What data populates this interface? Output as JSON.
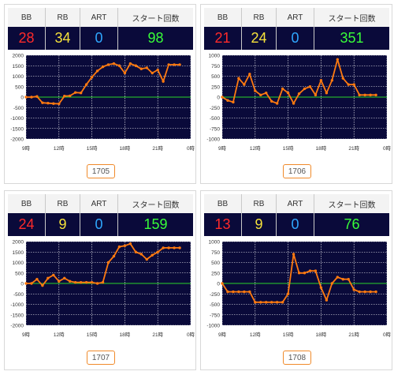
{
  "colors": {
    "bb": "#ff2a2a",
    "rb": "#f6e23a",
    "art": "#2fa7ff",
    "start": "#38ff38",
    "plot_bg": "#0a0a3a",
    "line": "#ff7a10",
    "zero_line": "#2bd42b",
    "grid": "#ffffff",
    "button_border": "#f08a2a"
  },
  "headers": [
    "BB",
    "RB",
    "ART",
    "スタート回数"
  ],
  "machines": [
    {
      "id": "1705",
      "stats": {
        "bb": "28",
        "rb": "34",
        "art": "0",
        "start": "98"
      },
      "chart_data": {
        "type": "line",
        "x_ticks": [
          "9時",
          "12時",
          "15時",
          "18時",
          "21時",
          "0時"
        ],
        "y_ticks": [
          "2000",
          "1500",
          "1000",
          "500",
          "0",
          "-500",
          "-1000",
          "-1500",
          "-2000"
        ],
        "ylim": [
          -2000,
          2000
        ],
        "xlim": [
          9,
          24
        ],
        "x": [
          9.0,
          9.5,
          10.0,
          10.5,
          11.0,
          11.5,
          12.0,
          12.5,
          13.0,
          13.5,
          14.0,
          14.5,
          15.0,
          15.5,
          16.0,
          16.5,
          17.0,
          17.5,
          18.0,
          18.5,
          19.0,
          19.5,
          20.0,
          20.5,
          21.0,
          21.5,
          22.0,
          22.5,
          23.0
        ],
        "y": [
          0,
          0,
          30,
          -270,
          -290,
          -310,
          -320,
          50,
          60,
          220,
          200,
          600,
          950,
          1250,
          1450,
          1550,
          1600,
          1500,
          1150,
          1600,
          1500,
          1350,
          1400,
          1150,
          1300,
          750,
          1550,
          1550,
          1550
        ]
      }
    },
    {
      "id": "1706",
      "stats": {
        "bb": "21",
        "rb": "24",
        "art": "0",
        "start": "351"
      },
      "chart_data": {
        "type": "line",
        "x_ticks": [
          "9時",
          "12時",
          "15時",
          "18時",
          "21時",
          "0時"
        ],
        "y_ticks": [
          "1000",
          "750",
          "500",
          "250",
          "0",
          "-250",
          "-500",
          "-750",
          "-1000"
        ],
        "ylim": [
          -1000,
          1000
        ],
        "xlim": [
          9,
          24
        ],
        "x": [
          9.0,
          9.5,
          10.0,
          10.5,
          11.0,
          11.5,
          12.0,
          12.5,
          13.0,
          13.5,
          14.0,
          14.5,
          15.0,
          15.5,
          16.0,
          16.5,
          17.0,
          17.5,
          18.0,
          18.5,
          19.0,
          19.5,
          20.0,
          20.5,
          21.0,
          21.5,
          22.0,
          22.5,
          23.0
        ],
        "y": [
          0,
          -80,
          -120,
          450,
          300,
          550,
          150,
          50,
          100,
          -100,
          -150,
          200,
          100,
          -150,
          80,
          200,
          250,
          50,
          400,
          100,
          400,
          900,
          450,
          300,
          300,
          50,
          50,
          50,
          50
        ]
      }
    },
    {
      "id": "1707",
      "stats": {
        "bb": "24",
        "rb": "9",
        "art": "0",
        "start": "159"
      },
      "chart_data": {
        "type": "line",
        "x_ticks": [
          "9時",
          "12時",
          "15時",
          "18時",
          "21時",
          "0時"
        ],
        "y_ticks": [
          "2000",
          "1500",
          "1000",
          "500",
          "0",
          "-500",
          "-1000",
          "-1500",
          "-2000"
        ],
        "ylim": [
          -2000,
          2000
        ],
        "xlim": [
          9,
          24
        ],
        "x": [
          9.0,
          9.5,
          10.0,
          10.5,
          11.0,
          11.5,
          12.0,
          12.5,
          13.0,
          13.5,
          14.0,
          14.5,
          15.0,
          15.5,
          16.0,
          16.5,
          17.0,
          17.5,
          18.0,
          18.5,
          19.0,
          19.5,
          20.0,
          20.5,
          21.0,
          21.5,
          22.0,
          22.5,
          23.0
        ],
        "y": [
          0,
          0,
          200,
          -100,
          250,
          400,
          100,
          250,
          100,
          50,
          50,
          50,
          50,
          0,
          50,
          1000,
          1300,
          1750,
          1800,
          1900,
          1500,
          1400,
          1150,
          1350,
          1500,
          1700,
          1700,
          1700,
          1700
        ]
      }
    },
    {
      "id": "1708",
      "stats": {
        "bb": "13",
        "rb": "9",
        "art": "0",
        "start": "76"
      },
      "chart_data": {
        "type": "line",
        "x_ticks": [
          "9時",
          "12時",
          "15時",
          "18時",
          "21時",
          "0時"
        ],
        "y_ticks": [
          "1000",
          "750",
          "500",
          "250",
          "0",
          "-250",
          "-500",
          "-750",
          "-1000"
        ],
        "ylim": [
          -1000,
          1000
        ],
        "xlim": [
          9,
          24
        ],
        "x": [
          9.0,
          9.5,
          10.0,
          10.5,
          11.0,
          11.5,
          12.0,
          12.5,
          13.0,
          13.5,
          14.0,
          14.5,
          15.0,
          15.5,
          16.0,
          16.5,
          17.0,
          17.5,
          18.0,
          18.5,
          19.0,
          19.5,
          20.0,
          20.5,
          21.0,
          21.5,
          22.0,
          22.5,
          23.0
        ],
        "y": [
          0,
          -200,
          -200,
          -200,
          -200,
          -200,
          -450,
          -450,
          -450,
          -450,
          -450,
          -450,
          -250,
          700,
          250,
          250,
          300,
          300,
          -100,
          -400,
          0,
          150,
          100,
          100,
          -150,
          -200,
          -200,
          -200,
          -200
        ]
      }
    }
  ]
}
